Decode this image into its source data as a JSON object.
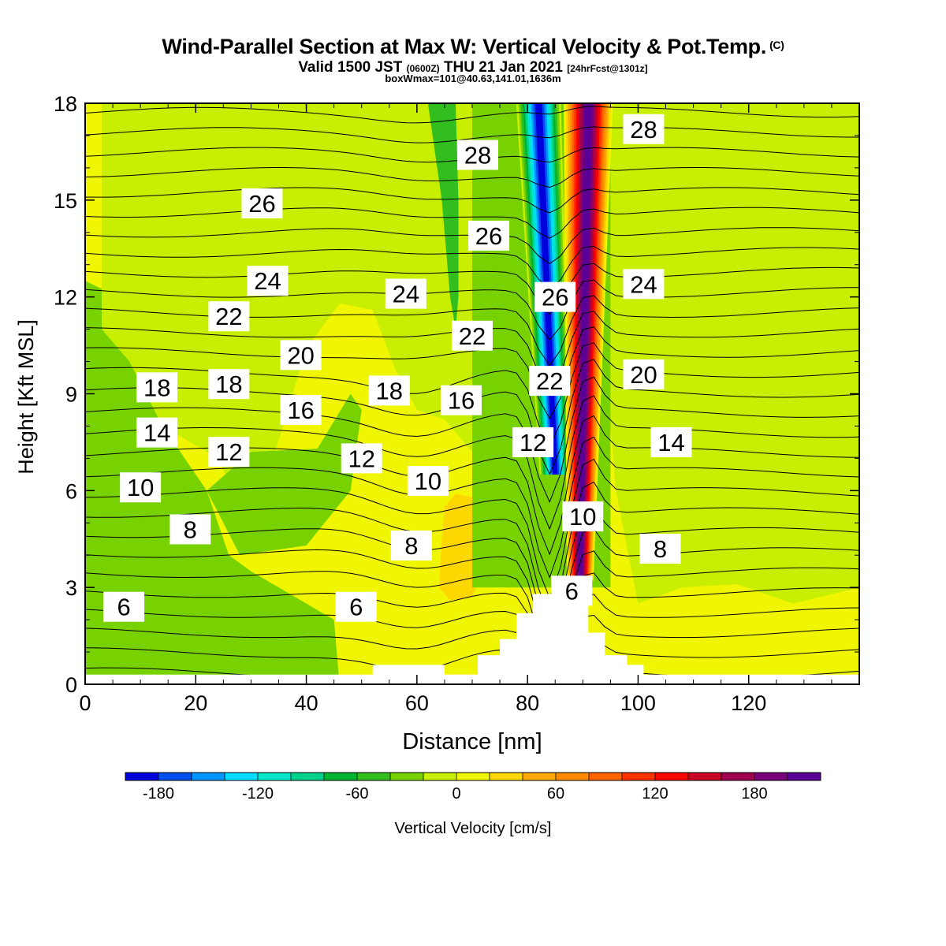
{
  "header": {
    "title": "Wind-Parallel Section at Max W: Vertical Velocity & Pot.Temp.",
    "copyright": "(C)",
    "valid_main": "Valid 1500 JST",
    "valid_utc": "(0600Z)",
    "valid_date": "THU 21 Jan 2021",
    "forecast": "[24hrFcst@1301z]",
    "boxwmax": "boxWmax=101@40.63,141.01,1636m"
  },
  "chart_data": {
    "type": "contour",
    "xlabel": "Distance [nm]",
    "ylabel": "Height [Kft MSL]",
    "xlim": [
      0,
      140
    ],
    "ylim": [
      0,
      18
    ],
    "xticks": [
      0,
      20,
      40,
      60,
      80,
      100,
      120
    ],
    "yticks": [
      0,
      3,
      6,
      9,
      12,
      15,
      18
    ],
    "colorbar": {
      "label": "Vertical Velocity [cm/s]",
      "ticks": [
        -180,
        -120,
        -60,
        0,
        60,
        120,
        180
      ],
      "levels": [
        -200,
        -180,
        -160,
        -140,
        -120,
        -100,
        -80,
        -60,
        -40,
        -20,
        0,
        20,
        40,
        60,
        80,
        100,
        120,
        140,
        160,
        180,
        200,
        220
      ],
      "colors": [
        "#0000dc",
        "#0050f0",
        "#0096ff",
        "#00dcff",
        "#00e6c8",
        "#00d28c",
        "#00b432",
        "#32be1e",
        "#78d200",
        "#c8ee00",
        "#f0f500",
        "#ffd700",
        "#ffaa00",
        "#ff8c00",
        "#ff6400",
        "#ff3200",
        "#ff0000",
        "#c80028",
        "#a00050",
        "#780078",
        "#5a0096"
      ]
    },
    "background_w_regions": [
      {
        "w_range": [
          -40,
          -20
        ],
        "shape": "broad lower-left zone"
      },
      {
        "w_range": [
          -20,
          0
        ],
        "shape": "bands above x 5-80 and x 100-140"
      },
      {
        "w_range": [
          20,
          40
        ],
        "shape": "x 64-73, 2.5-6 Kft"
      }
    ],
    "updraft_core": {
      "x_top": 91,
      "x_bottom": 89.5,
      "w_max_cm_s": 210
    },
    "downdraft_core": {
      "x_top": 82,
      "x_bottom": 85,
      "w_min_cm_s": -190
    },
    "terrain": [
      [
        52,
        0
      ],
      [
        52,
        0.6
      ],
      [
        65,
        0.6
      ],
      [
        65,
        0.3
      ],
      [
        71,
        0.3
      ],
      [
        71,
        0.9
      ],
      [
        75,
        0.9
      ],
      [
        75,
        1.4
      ],
      [
        78,
        1.4
      ],
      [
        78,
        2.2
      ],
      [
        81,
        2.2
      ],
      [
        81,
        2.8
      ],
      [
        91,
        2.8
      ],
      [
        91,
        1.6
      ],
      [
        94,
        1.6
      ],
      [
        94,
        0.9
      ],
      [
        98,
        0.9
      ],
      [
        98,
        0.6
      ],
      [
        101,
        0.6
      ],
      [
        101,
        0
      ]
    ],
    "isentropes": [
      {
        "theta": 6,
        "labels": [
          [
            7,
            2.4
          ],
          [
            49,
            2.4
          ],
          [
            88,
            2.9
          ]
        ]
      },
      {
        "theta": 8,
        "labels": [
          [
            19,
            4.8
          ],
          [
            59,
            4.3
          ],
          [
            104,
            4.2
          ]
        ]
      },
      {
        "theta": 10,
        "labels": [
          [
            10,
            6.1
          ],
          [
            62,
            6.3
          ],
          [
            90,
            5.2
          ]
        ]
      },
      {
        "theta": 12,
        "labels": [
          [
            26,
            7.2
          ],
          [
            50,
            7.0
          ],
          [
            81,
            7.5
          ]
        ]
      },
      {
        "theta": 14,
        "labels": [
          [
            13,
            7.8
          ],
          [
            106,
            7.5
          ]
        ]
      },
      {
        "theta": 16,
        "labels": [
          [
            39,
            8.5
          ],
          [
            68,
            8.8
          ]
        ]
      },
      {
        "theta": 18,
        "labels": [
          [
            13,
            9.2
          ],
          [
            26,
            9.3
          ],
          [
            55,
            9.1
          ]
        ]
      },
      {
        "theta": 20,
        "labels": [
          [
            39,
            10.2
          ],
          [
            101,
            9.6
          ]
        ]
      },
      {
        "theta": 22,
        "labels": [
          [
            26,
            11.4
          ],
          [
            70,
            10.8
          ],
          [
            84,
            9.4
          ]
        ]
      },
      {
        "theta": 24,
        "labels": [
          [
            33,
            12.5
          ],
          [
            58,
            12.1
          ],
          [
            101,
            12.4
          ]
        ]
      },
      {
        "theta": 26,
        "labels": [
          [
            32,
            14.9
          ],
          [
            73,
            13.9
          ],
          [
            85,
            12.0
          ]
        ]
      },
      {
        "theta": 28,
        "labels": [
          [
            71,
            16.4
          ],
          [
            101,
            17.2
          ]
        ]
      }
    ]
  }
}
